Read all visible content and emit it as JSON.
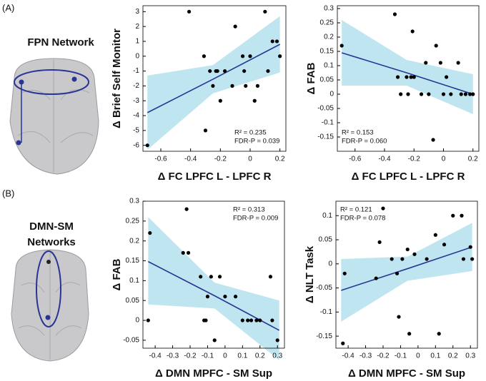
{
  "panels": [
    {
      "label": "(A)",
      "network": [
        "FPN Network"
      ]
    },
    {
      "label": "(B)",
      "network": [
        "DMN-SM",
        "Networks"
      ]
    }
  ],
  "chart_data": [
    {
      "type": "scatter",
      "xlabel": "Δ FC LPFC L - LPFC R",
      "ylabel": "Δ Brief Self Monitor",
      "xlim": [
        -0.72,
        0.24
      ],
      "ylim": [
        -6.4,
        3.4
      ],
      "xticks": [
        -0.6,
        -0.4,
        -0.2,
        0,
        0.2
      ],
      "yticks": [
        -6,
        -5,
        -4,
        -3,
        -2,
        -1,
        0,
        1,
        2,
        3
      ],
      "x": [
        -0.69,
        -0.41,
        -0.31,
        -0.3,
        -0.27,
        -0.25,
        -0.23,
        -0.22,
        -0.2,
        -0.17,
        -0.12,
        -0.1,
        -0.05,
        -0.04,
        -0.03,
        0.0,
        0.03,
        0.05,
        0.1,
        0.12,
        0.15,
        0.18,
        0.2
      ],
      "values": [
        -6,
        3,
        0,
        -5,
        -1,
        -2,
        -1,
        -1,
        -3,
        -1,
        -2,
        2,
        0,
        -1,
        -2,
        0,
        -3,
        -2,
        3,
        -1,
        1,
        1,
        0
      ],
      "fit": {
        "x": [
          -0.69,
          -0.25,
          0.2
        ],
        "y": [
          -3.8,
          -1.55,
          0.8
        ],
        "lower": [
          -6.3,
          -2.5,
          -1.1
        ],
        "upper": [
          -1.3,
          -0.6,
          2.7
        ]
      },
      "annotations": [
        "R² = 0.235",
        "FDR-P = 0.039"
      ],
      "annotation_corner": "bottom-right",
      "color": "#000000",
      "fit_color": "#283593",
      "band_color": "#bfe6f0"
    },
    {
      "type": "scatter",
      "xlabel": "Δ FC LPFC L - LPFC R",
      "ylabel": "Δ FAB",
      "xlim": [
        -0.72,
        0.24
      ],
      "ylim": [
        -0.2,
        0.31
      ],
      "xticks": [
        -0.6,
        -0.4,
        -0.2,
        0,
        0.2
      ],
      "yticks": [
        -0.15,
        -0.1,
        -0.05,
        0,
        0.05,
        0.1,
        0.15,
        0.2,
        0.25,
        0.3
      ],
      "x": [
        -0.69,
        -0.33,
        -0.31,
        -0.29,
        -0.25,
        -0.24,
        -0.22,
        -0.21,
        -0.2,
        -0.15,
        -0.12,
        -0.1,
        -0.07,
        -0.05,
        -0.02,
        0.0,
        0.02,
        0.05,
        0.1,
        0.12,
        0.15,
        0.18,
        0.2
      ],
      "values": [
        0.17,
        0.28,
        0.06,
        0.0,
        0.06,
        0.0,
        0.06,
        0.22,
        0.06,
        0.0,
        0.11,
        0.0,
        -0.16,
        0.17,
        0.11,
        0.0,
        0.06,
        0.0,
        0.11,
        0.0,
        0.0,
        0.0,
        0.0
      ],
      "fit": {
        "x": [
          -0.69,
          -0.25,
          0.2
        ],
        "y": [
          0.145,
          0.075,
          0.0
        ],
        "lower": [
          0.03,
          0.03,
          -0.07
        ],
        "upper": [
          0.26,
          0.12,
          0.07
        ]
      },
      "annotations": [
        "R² = 0.153",
        "FDR-P = 0.060"
      ],
      "annotation_corner": "bottom-left",
      "color": "#000000",
      "fit_color": "#283593",
      "band_color": "#bfe6f0"
    },
    {
      "type": "scatter",
      "xlabel": "Δ DMN MPFC - SM Sup",
      "ylabel": "Δ FAB",
      "xlim": [
        -0.47,
        0.34
      ],
      "ylim": [
        -0.07,
        0.3
      ],
      "xticks": [
        -0.4,
        -0.3,
        -0.2,
        -0.1,
        0,
        0.1,
        0.2,
        0.3
      ],
      "yticks": [
        -0.05,
        0,
        0.05,
        0.1,
        0.15,
        0.2,
        0.25,
        0.3
      ],
      "x": [
        -0.44,
        -0.43,
        -0.24,
        -0.22,
        -0.21,
        -0.14,
        -0.12,
        -0.11,
        -0.1,
        -0.08,
        -0.06,
        -0.03,
        0.0,
        0.06,
        0.1,
        0.13,
        0.15,
        0.18,
        0.2,
        0.26,
        0.27,
        0.3
      ],
      "values": [
        0.0,
        0.22,
        0.17,
        0.28,
        0.17,
        0.11,
        0.0,
        0.0,
        0.06,
        0.11,
        -0.05,
        0.11,
        0.06,
        0.06,
        0.0,
        0.0,
        0.0,
        0.0,
        0.0,
        0.11,
        0.0,
        -0.05
      ],
      "fit": {
        "x": [
          -0.44,
          -0.06,
          0.31
        ],
        "y": [
          0.148,
          0.062,
          -0.025
        ],
        "lower": [
          0.04,
          0.03,
          -0.1
        ],
        "upper": [
          0.26,
          0.095,
          0.05
        ]
      },
      "annotations": [
        "R² = 0.313",
        "FDR-P = 0.009"
      ],
      "annotation_corner": "top-right",
      "color": "#000000",
      "fit_color": "#283593",
      "band_color": "#bfe6f0"
    },
    {
      "type": "scatter",
      "xlabel": "Δ DMN MPFC - SM Sup",
      "ylabel": "Δ NLT Task",
      "xlim": [
        -0.47,
        0.34
      ],
      "ylim": [
        -0.175,
        0.13
      ],
      "xticks": [
        -0.4,
        -0.3,
        -0.2,
        -0.1,
        0,
        0.1,
        0.2,
        0.3
      ],
      "yticks": [
        -0.15,
        -0.1,
        -0.05,
        0,
        0.05,
        0.1
      ],
      "x": [
        -0.43,
        -0.42,
        -0.24,
        -0.22,
        -0.2,
        -0.15,
        -0.12,
        -0.11,
        -0.09,
        -0.06,
        -0.05,
        -0.02,
        0.05,
        0.1,
        0.12,
        0.15,
        0.2,
        0.25,
        0.26,
        0.3,
        0.31
      ],
      "values": [
        -0.165,
        -0.02,
        -0.03,
        0.045,
        0.115,
        0.01,
        -0.02,
        -0.11,
        0.01,
        0.03,
        -0.145,
        0.02,
        0.01,
        0.06,
        -0.145,
        0.04,
        0.1,
        0.1,
        0.01,
        0.035,
        0.01
      ],
      "fit": {
        "x": [
          -0.44,
          -0.06,
          0.31
        ],
        "y": [
          -0.055,
          -0.01,
          0.035
        ],
        "lower": [
          -0.12,
          -0.035,
          -0.015
        ],
        "upper": [
          0.01,
          0.015,
          0.085
        ]
      },
      "annotations": [
        "R² = 0.121",
        "FDR-P = 0.078"
      ],
      "annotation_corner": "top-left",
      "color": "#000000",
      "fit_color": "#283593",
      "band_color": "#bfe6f0"
    }
  ]
}
